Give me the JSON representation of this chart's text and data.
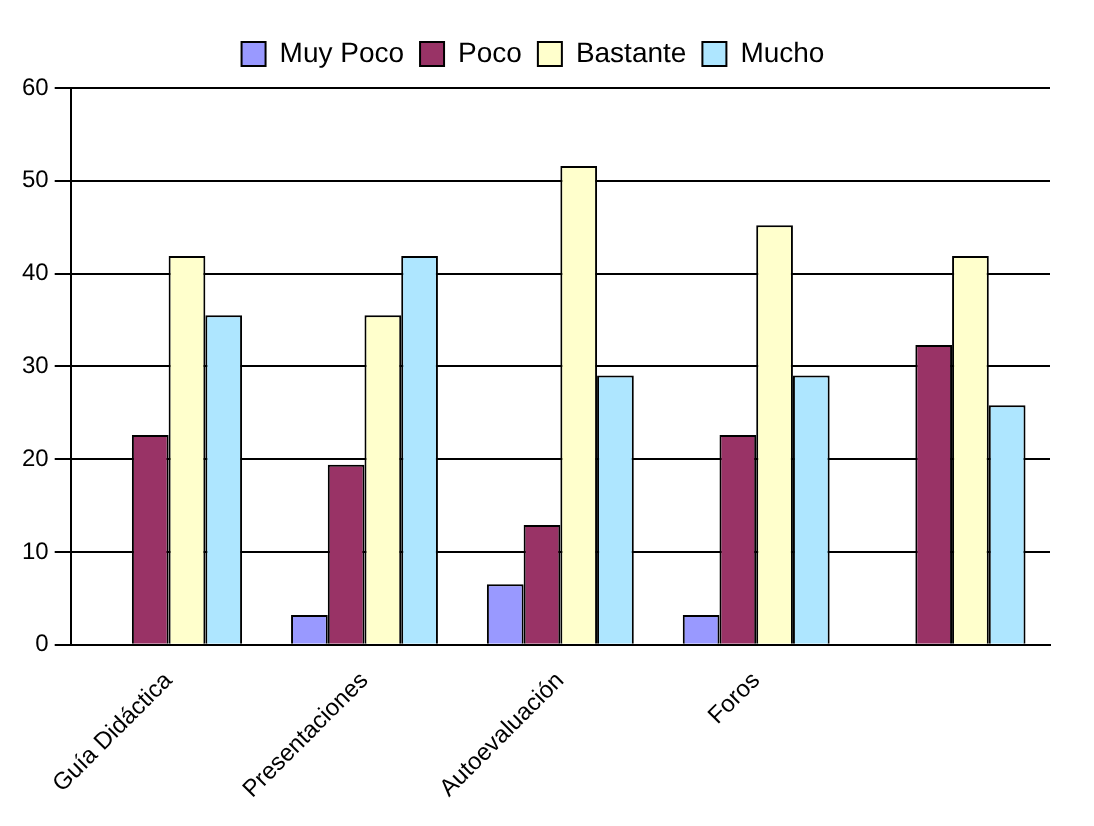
{
  "chart_data": {
    "type": "bar",
    "categories": [
      "Guía Didáctica",
      "Presentaciones",
      "Autoevaluación",
      "Foros",
      null
    ],
    "series": [
      {
        "name": "Muy Poco",
        "color": "#9999ff",
        "values": [
          0,
          3.2,
          6.5,
          3.2,
          0
        ]
      },
      {
        "name": "Poco",
        "color": "#993366",
        "values": [
          22.6,
          19.4,
          12.9,
          22.6,
          32.3
        ]
      },
      {
        "name": "Bastante",
        "color": "#ffffcc",
        "values": [
          41.9,
          35.5,
          51.6,
          45.2,
          41.9
        ]
      },
      {
        "name": "Mucho",
        "color": "#aee6ff",
        "values": [
          35.5,
          41.9,
          29.0,
          29.0,
          25.8
        ]
      }
    ],
    "ylim": [
      0,
      60
    ],
    "yticks": [
      0,
      10,
      20,
      30,
      40,
      50,
      60
    ],
    "grid": "y",
    "legend": "top"
  }
}
